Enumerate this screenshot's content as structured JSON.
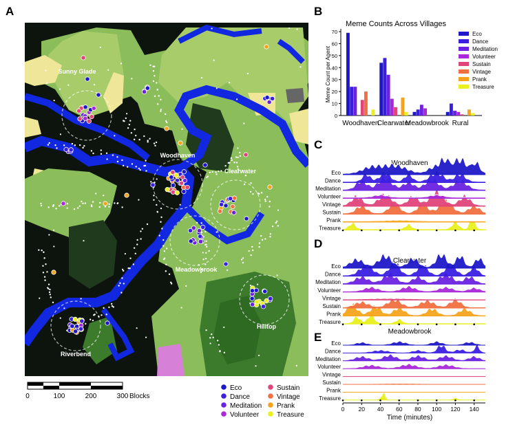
{
  "panel_labels": [
    "A",
    "B",
    "C",
    "D",
    "E"
  ],
  "map": {
    "village_labels": [
      "Sunny Glade",
      "Woodhaven",
      "Clearwater",
      "Meadowbrook",
      "Hilltop",
      "Riverbend"
    ],
    "scalebar": {
      "ticks": [
        "0",
        "100",
        "200",
        "300"
      ],
      "unit": "Blocks",
      "tick_values": [
        0,
        100,
        200,
        300
      ]
    },
    "legend": [
      {
        "label": "Eco",
        "color": "#1f18c8"
      },
      {
        "label": "Dance",
        "color": "#3a1fe0"
      },
      {
        "label": "Meditation",
        "color": "#6a21e0"
      },
      {
        "label": "Volunteer",
        "color": "#a928d8"
      },
      {
        "label": "Sustain",
        "color": "#e0457a"
      },
      {
        "label": "Vintage",
        "color": "#f07040"
      },
      {
        "label": "Prank",
        "color": "#f5a31c"
      },
      {
        "label": "Treasure",
        "color": "#e8f020"
      }
    ],
    "terrain_colors": {
      "dark": "#0d140d",
      "forest": "#1f3a1c",
      "grass": "#8bbd5a",
      "light": "#a9cc6a",
      "sand": "#efe698",
      "water": "#1227e0",
      "deep_forest": "#3c7a2c",
      "pink": "#d680d8",
      "rock": "#666666"
    }
  },
  "chart_data": [
    {
      "type": "bar",
      "title": "Meme Counts Across Villages",
      "ylabel": "Meme Count per Agent",
      "xlabel": "",
      "categories": [
        "Woodhaven",
        "Clearwater",
        "Meadowbrook",
        "Rural"
      ],
      "ylim": [
        0,
        70
      ],
      "yticks": [
        0,
        10,
        20,
        30,
        40,
        50,
        60,
        70
      ],
      "legend_position": "top-right",
      "series": [
        {
          "name": "Eco",
          "color": "#1f18c8",
          "values": [
            69,
            44,
            3,
            3
          ]
        },
        {
          "name": "Dance",
          "color": "#3a1fe0",
          "values": [
            24,
            48,
            5,
            10
          ]
        },
        {
          "name": "Meditation",
          "color": "#6a21e0",
          "values": [
            24,
            34,
            9,
            4
          ]
        },
        {
          "name": "Volunteer",
          "color": "#a928d8",
          "values": [
            0,
            14,
            6,
            3
          ]
        },
        {
          "name": "Sustain",
          "color": "#e0457a",
          "values": [
            13,
            7,
            0,
            1
          ]
        },
        {
          "name": "Vintage",
          "color": "#f07040",
          "values": [
            20,
            0,
            0,
            0
          ]
        },
        {
          "name": "Prank",
          "color": "#f5a31c",
          "values": [
            0,
            15,
            0,
            5
          ]
        },
        {
          "name": "Treasure",
          "color": "#e8f020",
          "values": [
            5,
            3,
            0,
            2
          ]
        }
      ]
    },
    {
      "type": "area",
      "title": "Woodhaven",
      "rows": [
        {
          "name": "Eco",
          "color": "#1f18c8",
          "peaks": [
            [
              30,
              14,
              0.4
            ],
            [
              55,
              18,
              0.55
            ],
            [
              95,
              8,
              0.35
            ],
            [
              108,
              8,
              0.9
            ],
            [
              125,
              10,
              0.95
            ],
            [
              142,
              6,
              0.7
            ]
          ]
        },
        {
          "name": "Dance",
          "color": "#3a1fe0",
          "peaks": [
            [
              25,
              6,
              0.5
            ],
            [
              45,
              8,
              0.6
            ],
            [
              70,
              6,
              0.5
            ],
            [
              100,
              10,
              0.6
            ],
            [
              125,
              8,
              0.5
            ]
          ]
        },
        {
          "name": "Meditation",
          "color": "#6a21e0",
          "peaks": [
            [
              20,
              8,
              0.6
            ],
            [
              45,
              10,
              0.8
            ],
            [
              70,
              8,
              0.5
            ],
            [
              95,
              10,
              0.7
            ],
            [
              125,
              10,
              0.6
            ]
          ]
        },
        {
          "name": "Volunteer",
          "color": "#a928d8",
          "peaks": [
            [
              40,
              10,
              0.15
            ],
            [
              100,
              10,
              0.15
            ]
          ]
        },
        {
          "name": "Vintage",
          "color": "#e0457a",
          "peaks": [
            [
              15,
              8,
              0.6
            ],
            [
              45,
              10,
              0.7
            ],
            [
              75,
              8,
              0.6
            ],
            [
              100,
              10,
              0.9
            ],
            [
              130,
              8,
              0.6
            ]
          ]
        },
        {
          "name": "Sustain",
          "color": "#f07040",
          "peaks": [
            [
              20,
              8,
              0.5
            ],
            [
              55,
              8,
              0.7
            ],
            [
              85,
              8,
              0.6
            ],
            [
              110,
              10,
              0.8
            ],
            [
              140,
              8,
              0.5
            ]
          ]
        },
        {
          "name": "Prank",
          "color": "#f5a31c",
          "peaks": [
            [
              60,
              20,
              0.05
            ]
          ]
        },
        {
          "name": "Treasure",
          "color": "#e8f020",
          "peaks": [
            [
              10,
              5,
              0.4
            ],
            [
              70,
              5,
              0.3
            ],
            [
              120,
              5,
              0.5
            ],
            [
              138,
              4,
              0.7
            ]
          ]
        }
      ]
    },
    {
      "type": "area",
      "title": "Clearwater",
      "rows": [
        {
          "name": "Eco",
          "color": "#1f18c8",
          "peaks": [
            [
              15,
              10,
              0.6
            ],
            [
              45,
              10,
              0.9
            ],
            [
              75,
              8,
              0.7
            ],
            [
              105,
              8,
              1.0
            ],
            [
              125,
              6,
              0.9
            ],
            [
              145,
              6,
              0.7
            ]
          ]
        },
        {
          "name": "Dance",
          "color": "#3a1fe0",
          "peaks": [
            [
              25,
              10,
              0.8
            ],
            [
              55,
              8,
              1.0
            ],
            [
              85,
              8,
              0.8
            ],
            [
              115,
              8,
              0.9
            ],
            [
              140,
              6,
              0.7
            ]
          ]
        },
        {
          "name": "Meditation",
          "color": "#6a21e0",
          "peaks": [
            [
              20,
              10,
              0.5
            ],
            [
              50,
              10,
              0.7
            ],
            [
              80,
              8,
              0.5
            ],
            [
              110,
              10,
              0.7
            ],
            [
              135,
              8,
              0.5
            ]
          ]
        },
        {
          "name": "Volunteer",
          "color": "#a928d8",
          "peaks": [
            [
              30,
              10,
              0.3
            ],
            [
              70,
              10,
              0.35
            ],
            [
              110,
              10,
              0.3
            ],
            [
              140,
              8,
              0.25
            ]
          ]
        },
        {
          "name": "Vintage",
          "color": "#e0457a",
          "peaks": [
            [
              50,
              30,
              0.05
            ]
          ]
        },
        {
          "name": "Sustain",
          "color": "#f07040",
          "peaks": [
            [
              20,
              10,
              0.4
            ],
            [
              55,
              10,
              0.6
            ],
            [
              90,
              10,
              0.5
            ],
            [
              120,
              8,
              0.6
            ]
          ]
        },
        {
          "name": "Prank",
          "color": "#f5a31c",
          "peaks": [
            [
              10,
              8,
              0.8
            ],
            [
              35,
              8,
              0.7
            ],
            [
              60,
              8,
              0.6
            ],
            [
              95,
              8,
              0.5
            ],
            [
              130,
              8,
              0.5
            ]
          ]
        },
        {
          "name": "Treasure",
          "color": "#e8f020",
          "peaks": [
            [
              15,
              5,
              0.5
            ],
            [
              30,
              5,
              0.7
            ],
            [
              60,
              5,
              0.3
            ]
          ]
        }
      ]
    },
    {
      "type": "area",
      "title": "Meadowbrook",
      "rows": [
        {
          "name": "Eco",
          "color": "#1f18c8",
          "peaks": [
            [
              20,
              8,
              0.3
            ],
            [
              60,
              10,
              0.4
            ],
            [
              100,
              8,
              0.4
            ],
            [
              135,
              8,
              0.35
            ]
          ]
        },
        {
          "name": "Dance",
          "color": "#3a1fe0",
          "peaks": [
            [
              40,
              12,
              0.3
            ],
            [
              80,
              8,
              0.3
            ],
            [
              105,
              6,
              1.0
            ],
            [
              125,
              8,
              0.4
            ],
            [
              143,
              4,
              0.9
            ]
          ]
        },
        {
          "name": "Meditation",
          "color": "#6a21e0",
          "peaks": [
            [
              20,
              10,
              0.5
            ],
            [
              50,
              10,
              0.7
            ],
            [
              80,
              10,
              0.6
            ],
            [
              110,
              10,
              0.6
            ],
            [
              140,
              8,
              0.5
            ]
          ]
        },
        {
          "name": "Volunteer",
          "color": "#a928d8",
          "peaks": [
            [
              30,
              12,
              0.4
            ],
            [
              70,
              12,
              0.5
            ],
            [
              110,
              12,
              0.45
            ]
          ]
        },
        {
          "name": "Vintage",
          "color": "#e0457a",
          "peaks": []
        },
        {
          "name": "Sustain",
          "color": "#f07040",
          "peaks": [
            [
              60,
              30,
              0.05
            ]
          ]
        },
        {
          "name": "Prank",
          "color": "#f5a31c",
          "peaks": []
        },
        {
          "name": "Treasure",
          "color": "#e8f020",
          "peaks": [
            [
              43,
              3,
              0.9
            ],
            [
              120,
              4,
              0.2
            ]
          ]
        }
      ]
    }
  ],
  "time_axis": {
    "xlabel": "Time (minutes)",
    "ticks": [
      "0",
      "20",
      "40",
      "60",
      "80",
      "100",
      "120",
      "140"
    ],
    "tick_values": [
      0,
      20,
      40,
      60,
      80,
      100,
      120,
      140
    ],
    "xlim": [
      0,
      152
    ]
  }
}
